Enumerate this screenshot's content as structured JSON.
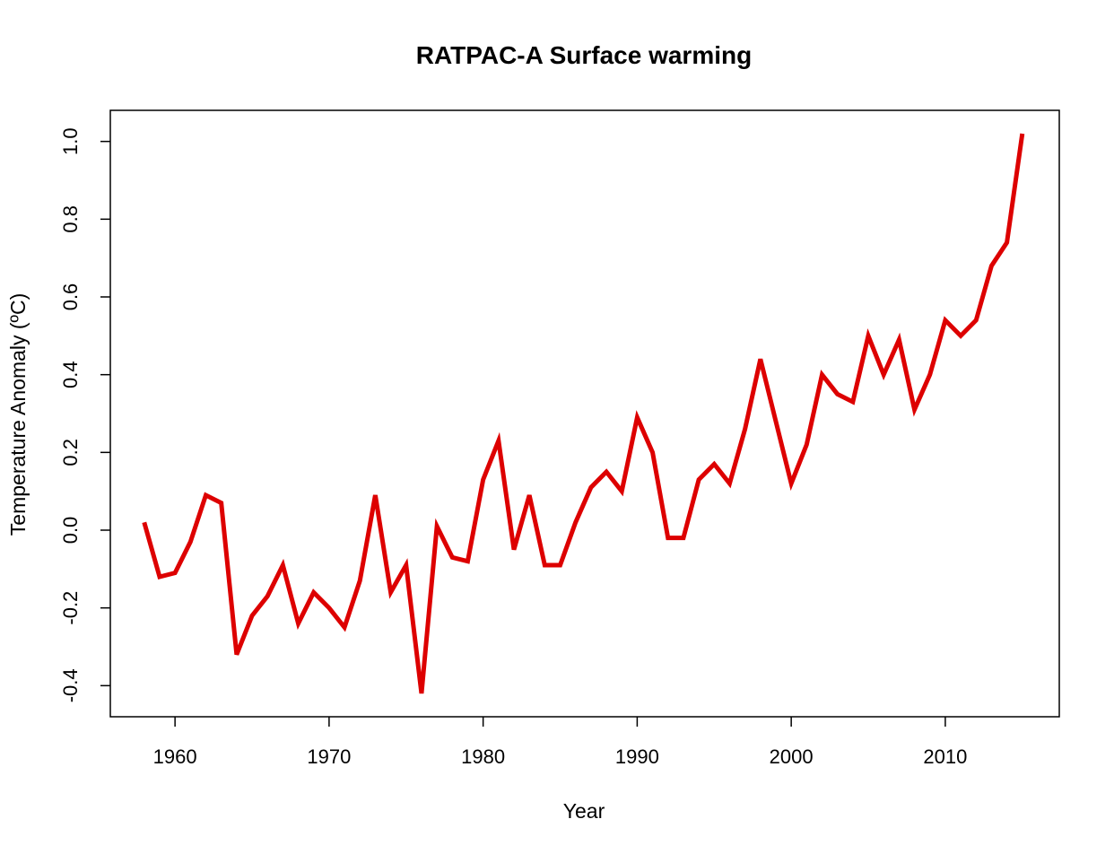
{
  "chart_data": {
    "type": "line",
    "title": "RATPAC-A Surface warming",
    "xlabel": "Year",
    "ylabel": "Temperature Anomaly (ºC)",
    "xlim": [
      1955.8,
      2017.4
    ],
    "ylim": [
      -0.48,
      1.08
    ],
    "x_ticks": [
      1960,
      1970,
      1980,
      1990,
      2000,
      2010
    ],
    "x_tick_labels": [
      "1960",
      "1970",
      "1980",
      "1990",
      "2000",
      "2010"
    ],
    "y_ticks": [
      -0.4,
      -0.2,
      0.0,
      0.2,
      0.4,
      0.6,
      0.8,
      1.0
    ],
    "y_tick_labels": [
      "-0.4",
      "-0.2",
      "0.0",
      "0.2",
      "0.4",
      "0.6",
      "0.8",
      "1.0"
    ],
    "grid": false,
    "series": [
      {
        "color": "#dd0000",
        "x": [
          1958,
          1959,
          1960,
          1961,
          1962,
          1963,
          1964,
          1965,
          1966,
          1967,
          1968,
          1969,
          1970,
          1971,
          1972,
          1973,
          1974,
          1975,
          1976,
          1977,
          1978,
          1979,
          1980,
          1981,
          1982,
          1983,
          1984,
          1985,
          1986,
          1987,
          1988,
          1989,
          1990,
          1991,
          1992,
          1993,
          1994,
          1995,
          1996,
          1997,
          1998,
          1999,
          2000,
          2001,
          2002,
          2003,
          2004,
          2005,
          2006,
          2007,
          2008,
          2009,
          2010,
          2011,
          2012,
          2013,
          2014,
          2015
        ],
        "values": [
          0.02,
          -0.12,
          -0.11,
          -0.03,
          0.09,
          0.07,
          -0.32,
          -0.22,
          -0.17,
          -0.09,
          -0.24,
          -0.16,
          -0.2,
          -0.25,
          -0.13,
          0.09,
          -0.16,
          -0.09,
          -0.42,
          0.01,
          -0.07,
          -0.08,
          0.13,
          0.23,
          -0.05,
          0.09,
          -0.09,
          -0.09,
          0.02,
          0.11,
          0.15,
          0.1,
          0.29,
          0.2,
          -0.02,
          -0.02,
          0.13,
          0.17,
          0.12,
          0.26,
          0.44,
          0.28,
          0.12,
          0.22,
          0.4,
          0.35,
          0.33,
          0.5,
          0.4,
          0.49,
          0.31,
          0.4,
          0.54,
          0.5,
          0.54,
          0.68,
          0.74,
          1.02
        ]
      }
    ]
  }
}
